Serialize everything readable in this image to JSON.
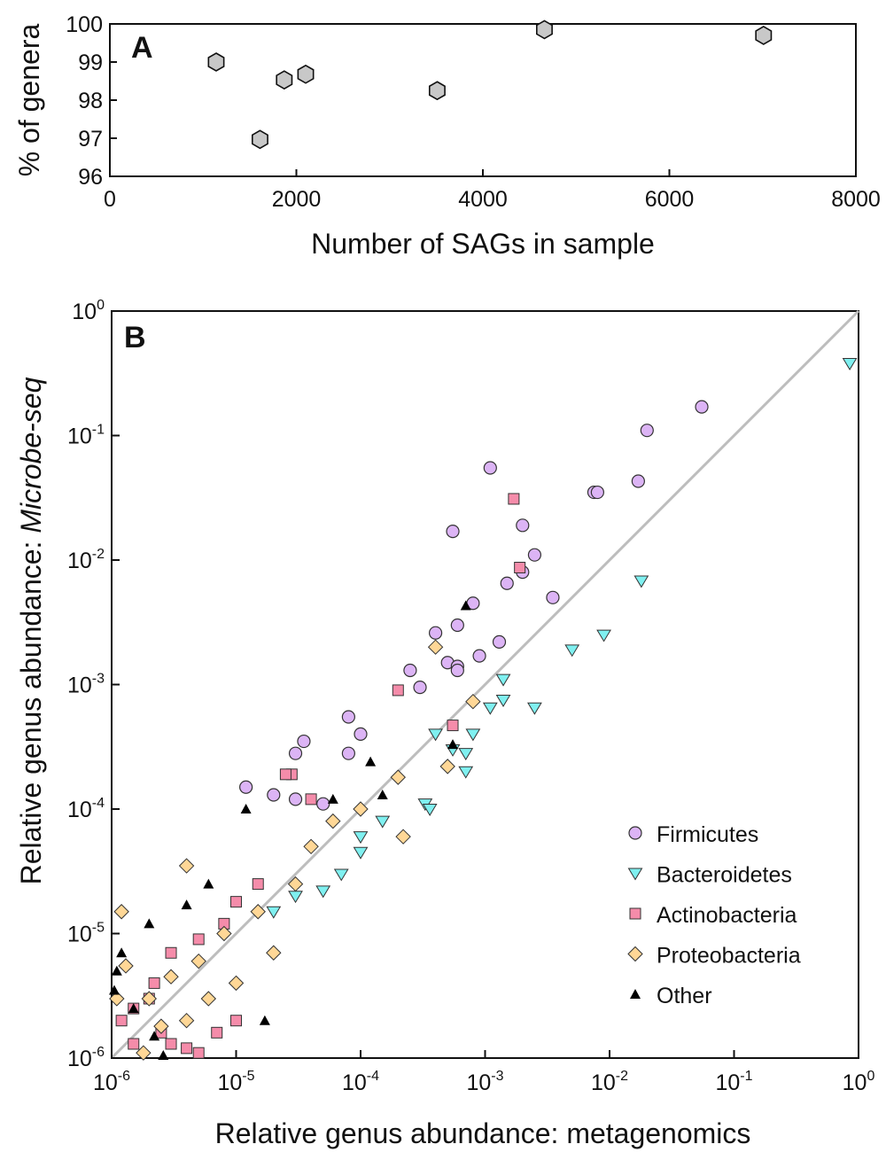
{
  "chart_data": [
    {
      "panel": "A",
      "type": "scatter",
      "xlabel": "Number of SAGs in sample",
      "ylabel": "% of genera",
      "xlim": [
        0,
        8000
      ],
      "ylim": [
        96,
        100
      ],
      "xticks": [
        0,
        2000,
        4000,
        6000,
        8000
      ],
      "yticks": [
        96,
        97,
        98,
        99,
        100
      ],
      "xtick_labels": [
        "0",
        "2000",
        "4000",
        "6000",
        "8000"
      ],
      "ytick_labels": [
        "96",
        "97",
        "98",
        "99",
        "100"
      ],
      "marker": "hexagon",
      "color": "#c8c8c8",
      "points": [
        {
          "x": 1140,
          "y": 99.0
        },
        {
          "x": 1610,
          "y": 96.97
        },
        {
          "x": 1870,
          "y": 98.53
        },
        {
          "x": 2100,
          "y": 98.68
        },
        {
          "x": 3510,
          "y": 98.25
        },
        {
          "x": 4660,
          "y": 99.85
        },
        {
          "x": 7010,
          "y": 99.7
        }
      ]
    },
    {
      "panel": "B",
      "type": "scatter",
      "xlabel": "Relative genus abundance: metagenomics",
      "ylabel_prefix": "Relative genus abundance: ",
      "ylabel_italic": "Microbe-seq",
      "x_scale": "log",
      "y_scale": "log",
      "xlim": [
        1e-06,
        1
      ],
      "ylim": [
        1e-06,
        1
      ],
      "tick_base": "10",
      "tick_exponents": [
        "-6",
        "-5",
        "-4",
        "-3",
        "-2",
        "-1",
        "0"
      ],
      "reference_line": "y = x",
      "legend_position": "bottom-right",
      "legend": [
        {
          "key": "firmicutes",
          "label": "Firmicutes",
          "marker": "circle",
          "color": "#dcb4f5"
        },
        {
          "key": "bacteroidetes",
          "label": "Bacteroidetes",
          "marker": "triangle-down",
          "color": "#7ff0f0"
        },
        {
          "key": "actinobacteria",
          "label": "Actinobacteria",
          "marker": "square",
          "color": "#f58caa"
        },
        {
          "key": "proteobacteria",
          "label": "Proteobacteria",
          "marker": "diamond",
          "color": "#ffd796"
        },
        {
          "key": "other",
          "label": "Other",
          "marker": "triangle-up",
          "color": "#000000"
        }
      ],
      "series": [
        {
          "key": "firmicutes",
          "points": [
            [
              0.055,
              0.17
            ],
            [
              0.02,
              0.11
            ],
            [
              0.017,
              0.043
            ],
            [
              0.0075,
              0.035
            ],
            [
              0.008,
              0.035
            ],
            [
              0.0011,
              0.055
            ],
            [
              0.00055,
              0.017
            ],
            [
              0.002,
              0.019
            ],
            [
              0.0025,
              0.011
            ],
            [
              0.002,
              0.008
            ],
            [
              0.0015,
              0.0065
            ],
            [
              0.0035,
              0.005
            ],
            [
              0.0008,
              0.0045
            ],
            [
              0.0006,
              0.003
            ],
            [
              0.0004,
              0.0026
            ],
            [
              0.0013,
              0.0022
            ],
            [
              0.0009,
              0.0017
            ],
            [
              0.0005,
              0.0015
            ],
            [
              0.0006,
              0.0014
            ],
            [
              0.0006,
              0.0013
            ],
            [
              0.00025,
              0.0013
            ],
            [
              0.0003,
              0.00095
            ],
            [
              8e-05,
              0.00055
            ],
            [
              0.0001,
              0.0004
            ],
            [
              3.5e-05,
              0.00035
            ],
            [
              3e-05,
              0.00028
            ],
            [
              8e-05,
              0.00028
            ],
            [
              1.2e-05,
              0.00015
            ],
            [
              2e-05,
              0.00013
            ],
            [
              3e-05,
              0.00012
            ],
            [
              5e-05,
              0.00011
            ]
          ]
        },
        {
          "key": "bacteroidetes",
          "points": [
            [
              0.85,
              0.38
            ],
            [
              0.018,
              0.0068
            ],
            [
              0.009,
              0.0025
            ],
            [
              0.005,
              0.0019
            ],
            [
              0.0025,
              0.00065
            ],
            [
              0.0011,
              0.00065
            ],
            [
              0.0014,
              0.0011
            ],
            [
              0.0014,
              0.00075
            ],
            [
              0.0008,
              0.0004
            ],
            [
              0.0004,
              0.0004
            ],
            [
              0.00055,
              0.0003
            ],
            [
              0.0007,
              0.00028
            ],
            [
              0.0007,
              0.0002
            ],
            [
              0.00033,
              0.00011
            ],
            [
              0.00036,
              0.0001
            ],
            [
              0.00015,
              8e-05
            ],
            [
              0.0001,
              6e-05
            ],
            [
              0.0001,
              4.5e-05
            ],
            [
              7e-05,
              3e-05
            ],
            [
              5e-05,
              2.2e-05
            ],
            [
              3e-05,
              2e-05
            ],
            [
              2e-05,
              1.5e-05
            ]
          ]
        },
        {
          "key": "actinobacteria",
          "points": [
            [
              0.0017,
              0.031
            ],
            [
              0.0019,
              0.0087
            ],
            [
              0.0002,
              0.0009
            ],
            [
              0.00055,
              0.00047
            ],
            [
              2.8e-05,
              0.00019
            ],
            [
              2.5e-05,
              0.00019
            ],
            [
              4e-05,
              0.00012
            ],
            [
              1.5e-05,
              2.5e-05
            ],
            [
              1e-05,
              1.8e-05
            ],
            [
              8e-06,
              1.2e-05
            ],
            [
              5e-06,
              9e-06
            ],
            [
              3e-06,
              7e-06
            ],
            [
              2.2e-06,
              4e-06
            ],
            [
              2e-06,
              3e-06
            ],
            [
              1.5e-06,
              2.5e-06
            ],
            [
              1.2e-06,
              2e-06
            ],
            [
              2.5e-06,
              1.6e-06
            ],
            [
              3e-06,
              1.3e-06
            ],
            [
              4e-06,
              1.2e-06
            ],
            [
              5e-06,
              1.1e-06
            ],
            [
              1e-05,
              2e-06
            ],
            [
              7e-06,
              1.6e-06
            ],
            [
              1.5e-06,
              1.3e-06
            ]
          ]
        },
        {
          "key": "proteobacteria",
          "points": [
            [
              0.0004,
              0.002
            ],
            [
              0.0008,
              0.00073
            ],
            [
              0.0005,
              0.00022
            ],
            [
              0.0002,
              0.00018
            ],
            [
              0.00022,
              6e-05
            ],
            [
              0.0001,
              0.0001
            ],
            [
              6e-05,
              8e-05
            ],
            [
              4e-05,
              5e-05
            ],
            [
              3e-05,
              2.5e-05
            ],
            [
              1.5e-05,
              1.5e-05
            ],
            [
              8e-06,
              1e-05
            ],
            [
              5e-06,
              6e-06
            ],
            [
              3e-06,
              4.5e-06
            ],
            [
              2e-06,
              3e-06
            ],
            [
              1.3e-06,
              5.5e-06
            ],
            [
              1.2e-06,
              1.5e-05
            ],
            [
              1.1e-06,
              3e-06
            ],
            [
              1.8e-06,
              1.1e-06
            ],
            [
              2.5e-06,
              1.8e-06
            ],
            [
              4e-06,
              2e-06
            ],
            [
              6e-06,
              3e-06
            ],
            [
              1e-05,
              4e-06
            ],
            [
              2e-05,
              7e-06
            ],
            [
              4e-06,
              3.5e-05
            ]
          ]
        },
        {
          "key": "other",
          "points": [
            [
              0.0007,
              0.0043
            ],
            [
              0.00055,
              0.00033
            ],
            [
              0.00012,
              0.00024
            ],
            [
              0.00015,
              0.00013
            ],
            [
              6e-05,
              0.00012
            ],
            [
              1.2e-05,
              0.0001
            ],
            [
              6e-06,
              2.5e-05
            ],
            [
              4e-06,
              1.7e-05
            ],
            [
              2e-06,
              1.2e-05
            ],
            [
              1.2e-06,
              7e-06
            ],
            [
              1.1e-06,
              5e-06
            ],
            [
              1.05e-06,
              3.5e-06
            ],
            [
              1.5e-06,
              2.5e-06
            ],
            [
              2.2e-06,
              1.5e-06
            ],
            [
              1.7e-05,
              2e-06
            ],
            [
              2.6e-06,
              1.05e-06
            ]
          ]
        }
      ]
    }
  ]
}
